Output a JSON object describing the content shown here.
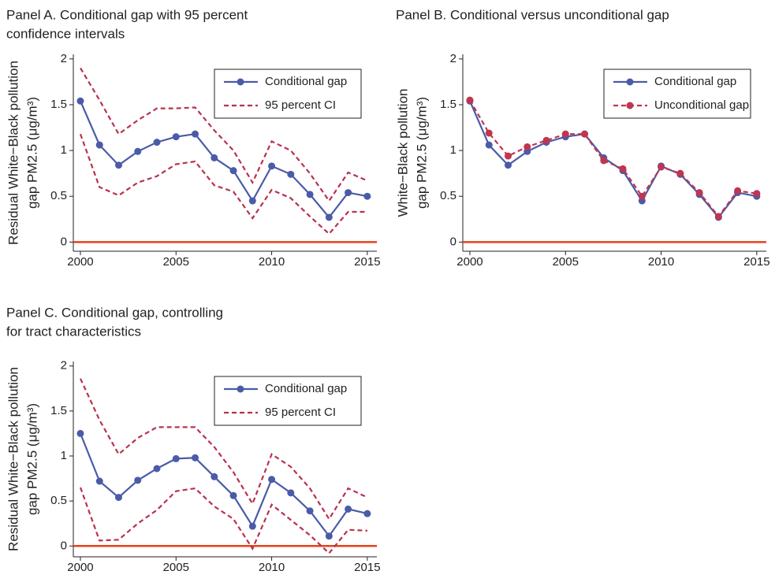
{
  "chart_data": [
    {
      "type": "line",
      "title": [
        "Panel A. Conditional gap with 95 percent",
        "confidence intervals"
      ],
      "ylabel": [
        "Residual White−Black pollution",
        "gap PM2.5 (μg/m³)"
      ],
      "x": [
        2000,
        2001,
        2002,
        2003,
        2004,
        2005,
        2006,
        2007,
        2008,
        2009,
        2010,
        2011,
        2012,
        2013,
        2014,
        2015
      ],
      "xlim": [
        1999.63,
        2015.5
      ],
      "xticks": [
        2000,
        2005,
        2010,
        2015
      ],
      "ylim": [
        -0.1,
        2.05
      ],
      "yticks": [
        0,
        0.5,
        1,
        1.5,
        2
      ],
      "hline": 0,
      "hline_color": "#e8401c",
      "legend": "top-right",
      "series": [
        {
          "name": "Conditional gap",
          "color": "#4a5ba8",
          "style": "solid",
          "markers": true,
          "values": [
            1.54,
            1.06,
            0.84,
            0.99,
            1.09,
            1.15,
            1.18,
            0.92,
            0.78,
            0.45,
            0.83,
            0.74,
            0.52,
            0.27,
            0.54,
            0.5
          ]
        },
        {
          "name": "95 percent CI",
          "color": "#b8324f",
          "style": "dashed",
          "markers": false,
          "upper": [
            1.9,
            1.55,
            1.18,
            1.33,
            1.46,
            1.46,
            1.47,
            1.22,
            1.0,
            0.65,
            1.1,
            1.0,
            0.75,
            0.45,
            0.76,
            0.67
          ],
          "lower": [
            1.18,
            0.6,
            0.51,
            0.65,
            0.72,
            0.85,
            0.88,
            0.62,
            0.55,
            0.26,
            0.57,
            0.48,
            0.28,
            0.09,
            0.33,
            0.33
          ]
        }
      ]
    },
    {
      "type": "line",
      "title": [
        "Panel B. Conditional versus unconditional gap"
      ],
      "ylabel": [
        "White−Black pollution",
        "gap PM2.5 (μg/m³)"
      ],
      "x": [
        2000,
        2001,
        2002,
        2003,
        2004,
        2005,
        2006,
        2007,
        2008,
        2009,
        2010,
        2011,
        2012,
        2013,
        2014,
        2015
      ],
      "xlim": [
        1999.63,
        2015.5
      ],
      "xticks": [
        2000,
        2005,
        2010,
        2015
      ],
      "ylim": [
        -0.1,
        2.05
      ],
      "yticks": [
        0,
        0.5,
        1,
        1.5,
        2
      ],
      "hline": 0,
      "hline_color": "#e8401c",
      "legend": "top-right",
      "series": [
        {
          "name": "Conditional gap",
          "color": "#4a5ba8",
          "style": "solid",
          "markers": true,
          "values": [
            1.54,
            1.06,
            0.84,
            0.99,
            1.09,
            1.15,
            1.18,
            0.92,
            0.78,
            0.45,
            0.83,
            0.74,
            0.52,
            0.27,
            0.54,
            0.5
          ]
        },
        {
          "name": "Unconditional gap",
          "color": "#c0354f",
          "style": "dashed",
          "markers": true,
          "values": [
            1.55,
            1.19,
            0.94,
            1.04,
            1.11,
            1.18,
            1.18,
            0.89,
            0.8,
            0.5,
            0.82,
            0.75,
            0.54,
            0.28,
            0.56,
            0.53
          ]
        }
      ]
    },
    {
      "type": "line",
      "title": [
        "Panel C. Conditional gap, controlling",
        "for tract characteristics"
      ],
      "ylabel": [
        "Residual White−Black pollution",
        "gap PM2.5 (μg/m³)"
      ],
      "x": [
        2000,
        2001,
        2002,
        2003,
        2004,
        2005,
        2006,
        2007,
        2008,
        2009,
        2010,
        2011,
        2012,
        2013,
        2014,
        2015
      ],
      "xlim": [
        1999.63,
        2015.5
      ],
      "xticks": [
        2000,
        2005,
        2010,
        2015
      ],
      "ylim": [
        -0.12,
        2.05
      ],
      "yticks": [
        0,
        0.5,
        1,
        1.5,
        2
      ],
      "hline": 0,
      "hline_color": "#e8401c",
      "legend": "top-right",
      "series": [
        {
          "name": "Conditional gap",
          "color": "#4a5ba8",
          "style": "solid",
          "markers": true,
          "values": [
            1.25,
            0.72,
            0.54,
            0.73,
            0.86,
            0.97,
            0.98,
            0.77,
            0.56,
            0.22,
            0.74,
            0.59,
            0.39,
            0.11,
            0.41,
            0.36
          ]
        },
        {
          "name": "95 percent CI",
          "color": "#b8324f",
          "style": "dashed",
          "markers": false,
          "upper": [
            1.86,
            1.4,
            1.02,
            1.2,
            1.32,
            1.32,
            1.32,
            1.1,
            0.82,
            0.47,
            1.02,
            0.88,
            0.64,
            0.3,
            0.64,
            0.54
          ],
          "lower": [
            0.65,
            0.06,
            0.07,
            0.25,
            0.4,
            0.61,
            0.64,
            0.44,
            0.3,
            -0.03,
            0.46,
            0.29,
            0.12,
            -0.08,
            0.18,
            0.17
          ]
        }
      ]
    }
  ]
}
